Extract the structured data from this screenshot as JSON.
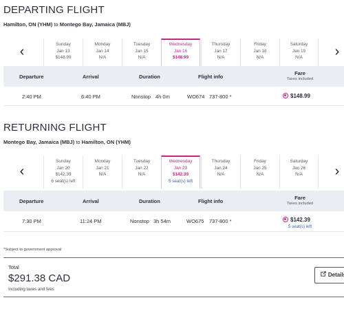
{
  "departing": {
    "title": "DEPARTING FLIGHT",
    "origin": "Hamilton, ON (YHM)",
    "connector": "to",
    "destination": "Montego Bay, Jamaica (MBJ)",
    "days": [
      {
        "name": "Sunday",
        "date": "Jan 13",
        "price": "$148.99",
        "seats": ""
      },
      {
        "name": "Monday",
        "date": "Jan 14",
        "price": "N/A",
        "seats": ""
      },
      {
        "name": "Tuesday",
        "date": "Jan 15",
        "price": "N/A",
        "seats": ""
      },
      {
        "name": "Wednesday",
        "date": "Jan 16",
        "price": "$148.99",
        "seats": "",
        "selected": true
      },
      {
        "name": "Thursday",
        "date": "Jan 17",
        "price": "N/A",
        "seats": ""
      },
      {
        "name": "Friday",
        "date": "Jan 18",
        "price": "N/A",
        "seats": ""
      },
      {
        "name": "Saturday",
        "date": "Jan 19",
        "price": "N/A",
        "seats": ""
      }
    ],
    "flight": {
      "departure": "2:40 PM",
      "arrival": "6:40 PM",
      "stops": "Nonstop",
      "duration": "4h 0m",
      "flight_no": "WO674",
      "aircraft": "737-800 *",
      "fare": "$148.99",
      "seats": ""
    }
  },
  "returning": {
    "title": "RETURNING FLIGHT",
    "origin": "Montego Bay, Jamaica (MBJ)",
    "connector": "to",
    "destination": "Hamilton, ON (YHM)",
    "days": [
      {
        "name": "Sunday",
        "date": "Jan 20",
        "price": "$142.39",
        "seats": "6 seat(s) left"
      },
      {
        "name": "Monday",
        "date": "Jan 21",
        "price": "N/A",
        "seats": ""
      },
      {
        "name": "Tuesday",
        "date": "Jan 22",
        "price": "N/A",
        "seats": ""
      },
      {
        "name": "Wednesday",
        "date": "Jan 23",
        "price": "$142.39",
        "seats": "5 seat(s) left",
        "selected": true
      },
      {
        "name": "Thursday",
        "date": "Jan 24",
        "price": "N/A",
        "seats": ""
      },
      {
        "name": "Friday",
        "date": "Jan 25",
        "price": "N/A",
        "seats": ""
      },
      {
        "name": "Saturday",
        "date": "Jan 26",
        "price": "N/A",
        "seats": ""
      }
    ],
    "flight": {
      "departure": "7:30 PM",
      "arrival": "11:24 PM",
      "stops": "Nonstop",
      "duration": "3h 54m",
      "flight_no": "WO675",
      "aircraft": "737-800 *",
      "fare": "$142.39",
      "seats": "5 seat(s) left"
    }
  },
  "columns": {
    "departure": "Departure",
    "arrival": "Arrival",
    "duration": "Duration",
    "flight_info": "Flight info",
    "fare": "Fare",
    "fare_sub": "Taxes included"
  },
  "footnote": "*Subject to government approval",
  "total": {
    "label": "Total",
    "amount": "$291.38 CAD",
    "sub": "Including taxes and fees",
    "details_label": "Details"
  },
  "colors": {
    "accent": "#c3268a",
    "header_bg": "#e9edf4",
    "seats": "#3a5bb0"
  },
  "icons": {
    "prev": "chevron-left-icon",
    "next": "chevron-right-icon",
    "details": "external-link-icon"
  }
}
